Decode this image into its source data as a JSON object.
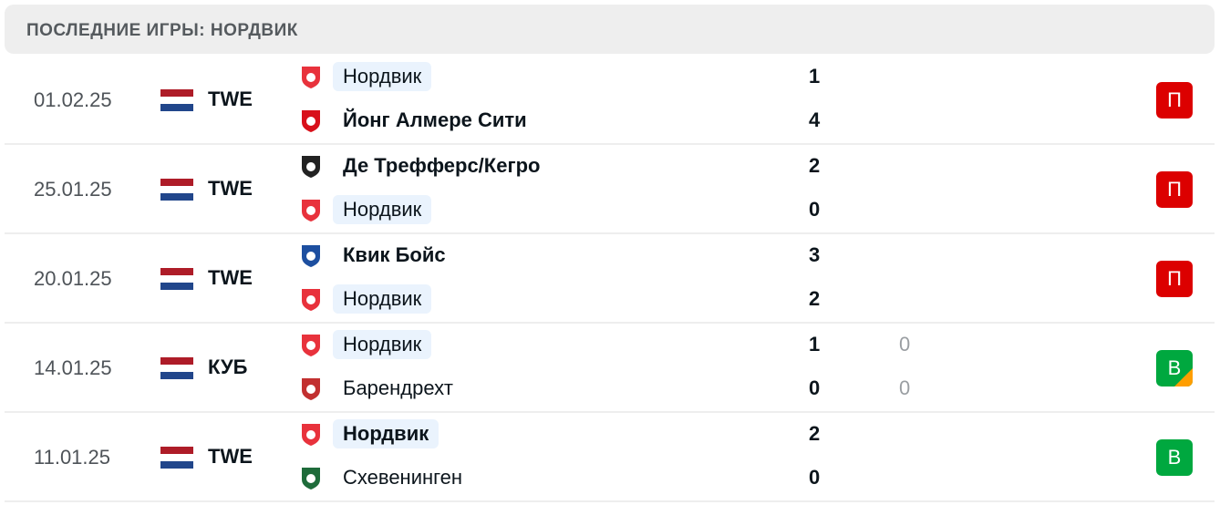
{
  "header": {
    "title": "ПОСЛЕДНИЕ ИГРЫ: НОРДВИК"
  },
  "colors": {
    "loss": "#dc0000",
    "win": "#00a83f",
    "penalty_corner": "#ff9e00",
    "highlight": "#eaf3fd"
  },
  "matches": [
    {
      "date": "01.02.25",
      "competition": "TWE",
      "home": {
        "name": "Нордвик",
        "score": "1",
        "logo": "#e8323c"
      },
      "away": {
        "name": "Йонг Алмере Сити",
        "score": "4",
        "logo": "#d8101a"
      },
      "result": "П",
      "res": "l"
    },
    {
      "date": "25.01.25",
      "competition": "TWE",
      "home": {
        "name": "Де Трефферс/Кегро",
        "score": "2",
        "logo": "#222"
      },
      "away": {
        "name": "Нордвик",
        "score": "0",
        "logo": "#e8323c"
      },
      "result": "П",
      "res": "l"
    },
    {
      "date": "20.01.25",
      "competition": "TWE",
      "home": {
        "name": "Квик Бойс",
        "score": "3",
        "logo": "#1d4fa0"
      },
      "away": {
        "name": "Нордвик",
        "score": "2",
        "logo": "#e8323c"
      },
      "result": "П",
      "res": "l"
    },
    {
      "date": "14.01.25",
      "competition": "КУБ",
      "home": {
        "name": "Нордвик",
        "score": "1",
        "pen": "0",
        "logo": "#e8323c"
      },
      "away": {
        "name": "Барендрехт",
        "score": "0",
        "pen": "0",
        "logo": "#c23030"
      },
      "result": "В",
      "res": "w"
    },
    {
      "date": "11.01.25",
      "competition": "TWE",
      "home": {
        "name": "Нордвик",
        "score": "2",
        "logo": "#e8323c"
      },
      "away": {
        "name": "Схевенинген",
        "score": "0",
        "logo": "#1e6b3a"
      },
      "result": "В",
      "res": "w"
    }
  ]
}
